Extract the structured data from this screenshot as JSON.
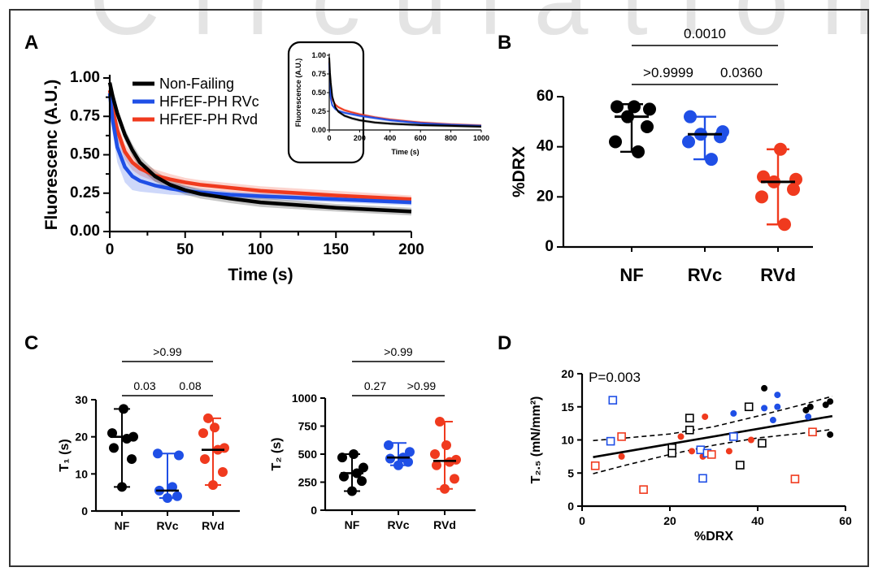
{
  "watermark": "Circulation",
  "colors": {
    "NF": "#000000",
    "RVc": "#1f4fe6",
    "RVd": "#f03a1e"
  },
  "chart_data": [
    {
      "panel": "A",
      "type": "line",
      "xlabel": "Time (s)",
      "ylabel": "Fluorescenc (A.U.)",
      "xlim": [
        0,
        200
      ],
      "ylim": [
        0,
        1.0
      ],
      "xticks": [
        "0",
        "50",
        "100",
        "150",
        "200"
      ],
      "yticks": [
        "0.00",
        "0.25",
        "0.50",
        "0.75",
        "1.00"
      ],
      "legend_position": "top-left",
      "series": [
        {
          "name": "Non-Failing",
          "color": "#000000",
          "x": [
            0,
            2,
            5,
            10,
            15,
            20,
            30,
            40,
            50,
            60,
            80,
            100,
            150,
            200
          ],
          "y": [
            0.97,
            0.88,
            0.77,
            0.63,
            0.53,
            0.45,
            0.36,
            0.305,
            0.27,
            0.245,
            0.215,
            0.19,
            0.155,
            0.13
          ],
          "band": [
            0.03,
            0.04,
            0.04,
            0.04,
            0.04,
            0.04,
            0.035,
            0.03,
            0.03,
            0.03,
            0.03,
            0.03,
            0.025,
            0.025
          ]
        },
        {
          "name": "HFrEF-PH RVc",
          "color": "#1f4fe6",
          "x": [
            0,
            2,
            5,
            10,
            15,
            20,
            30,
            40,
            50,
            60,
            80,
            100,
            150,
            200
          ],
          "y": [
            0.9,
            0.72,
            0.55,
            0.42,
            0.36,
            0.33,
            0.3,
            0.28,
            0.265,
            0.255,
            0.24,
            0.23,
            0.21,
            0.19
          ],
          "band": [
            0.05,
            0.08,
            0.1,
            0.1,
            0.09,
            0.07,
            0.05,
            0.04,
            0.03,
            0.025,
            0.02,
            0.02,
            0.02,
            0.02
          ]
        },
        {
          "name": "HFrEF-PH Rvd",
          "color": "#f03a1e",
          "x": [
            0,
            2,
            5,
            10,
            15,
            20,
            30,
            40,
            50,
            60,
            80,
            100,
            150,
            200
          ],
          "y": [
            0.92,
            0.8,
            0.66,
            0.52,
            0.45,
            0.41,
            0.365,
            0.34,
            0.32,
            0.305,
            0.285,
            0.265,
            0.235,
            0.21
          ],
          "band": [
            0.05,
            0.06,
            0.06,
            0.05,
            0.05,
            0.045,
            0.04,
            0.035,
            0.03,
            0.03,
            0.03,
            0.03,
            0.03,
            0.025
          ]
        }
      ],
      "inset": {
        "xlabel": "Time (s)",
        "ylabel": "Fluorescence (A.U.)",
        "xlim": [
          0,
          1000
        ],
        "ylim": [
          0,
          1.0
        ],
        "xticks": [
          "0",
          "200",
          "400",
          "600",
          "800",
          "1000"
        ],
        "yticks": [
          "0.00",
          "0.25",
          "0.50",
          "0.75",
          "1.00"
        ],
        "series_x": [
          0,
          5,
          10,
          20,
          40,
          60,
          100,
          150,
          200,
          300,
          400,
          600,
          800,
          1000
        ],
        "series": [
          {
            "name": "Non-Failing",
            "y": [
              0.97,
              0.77,
              0.63,
              0.45,
              0.305,
              0.245,
              0.19,
              0.155,
              0.13,
              0.1,
              0.085,
              0.065,
              0.055,
              0.045
            ]
          },
          {
            "name": "HFrEF-PH RVc",
            "y": [
              0.9,
              0.55,
              0.42,
              0.33,
              0.28,
              0.255,
              0.23,
              0.21,
              0.19,
              0.16,
              0.13,
              0.09,
              0.07,
              0.055
            ]
          },
          {
            "name": "HFrEF-PH Rvd",
            "y": [
              0.92,
              0.66,
              0.52,
              0.41,
              0.34,
              0.305,
              0.265,
              0.235,
              0.21,
              0.17,
              0.14,
              0.1,
              0.075,
              0.06
            ]
          }
        ]
      }
    },
    {
      "panel": "B",
      "type": "scatter",
      "ylabel": "%DRX",
      "ylim": [
        0,
        60
      ],
      "yticks": [
        "0",
        "20",
        "40",
        "60"
      ],
      "categories": [
        "NF",
        "RVc",
        "RVd"
      ],
      "groups": [
        {
          "name": "NF",
          "median": 52,
          "min": 38,
          "max": 57,
          "points": [
            38,
            42,
            48,
            52,
            55,
            56,
            56
          ]
        },
        {
          "name": "RVc",
          "median": 45,
          "min": 35,
          "max": 52,
          "points": [
            35,
            42,
            44,
            45,
            46,
            52
          ]
        },
        {
          "name": "RVd",
          "median": 26,
          "min": 9,
          "max": 39,
          "points": [
            9,
            20,
            23,
            26,
            27,
            28,
            39
          ]
        }
      ],
      "comparisons": [
        {
          "from": 0,
          "to": 2,
          "label": "0.0010"
        },
        {
          "from": 0,
          "to": 1,
          "label": ">0.9999"
        },
        {
          "from": 1,
          "to": 2,
          "label": "0.0360"
        }
      ]
    },
    {
      "panel": "C",
      "type": "scatter",
      "ylabel": "T₁ (s)",
      "ylim": [
        0,
        30
      ],
      "yticks": [
        "0",
        "10",
        "20",
        "30"
      ],
      "categories": [
        "NF",
        "RVc",
        "RVd"
      ],
      "groups": [
        {
          "name": "NF",
          "median": 20,
          "min": 6.5,
          "max": 27.5,
          "points": [
            6.5,
            14,
            17,
            19.5,
            20,
            21,
            27.5
          ]
        },
        {
          "name": "RVc",
          "median": 5.5,
          "min": 3.5,
          "max": 15.5,
          "points": [
            3.5,
            4,
            5.5,
            6.5,
            15,
            15.5
          ]
        },
        {
          "name": "RVd",
          "median": 16.5,
          "min": 7,
          "max": 25,
          "points": [
            7,
            10.5,
            14,
            16.5,
            17,
            21,
            22.5,
            25
          ]
        }
      ],
      "comparisons": [
        {
          "from": 0,
          "to": 2,
          "label": ">0.99"
        },
        {
          "from": 0,
          "to": 1,
          "label": "0.03"
        },
        {
          "from": 1,
          "to": 2,
          "label": "0.08"
        }
      ]
    },
    {
      "panel": "C2",
      "type": "scatter",
      "ylabel": "T₂ (s)",
      "ylim": [
        0,
        1000
      ],
      "yticks": [
        "0",
        "250",
        "500",
        "750",
        "1000"
      ],
      "categories": [
        "NF",
        "RVc",
        "RVd"
      ],
      "groups": [
        {
          "name": "NF",
          "median": 330,
          "min": 170,
          "max": 500,
          "points": [
            170,
            260,
            300,
            330,
            380,
            470,
            500
          ]
        },
        {
          "name": "RVc",
          "median": 470,
          "min": 400,
          "max": 600,
          "points": [
            400,
            430,
            460,
            470,
            520,
            580
          ]
        },
        {
          "name": "RVd",
          "median": 440,
          "min": 190,
          "max": 790,
          "points": [
            190,
            280,
            400,
            430,
            450,
            500,
            580,
            790
          ]
        }
      ],
      "comparisons": [
        {
          "from": 0,
          "to": 2,
          "label": ">0.99"
        },
        {
          "from": 0,
          "to": 1,
          "label": "0.27"
        },
        {
          "from": 1,
          "to": 2,
          "label": ">0.99"
        }
      ]
    },
    {
      "panel": "D",
      "type": "scatter",
      "xlabel": "%DRX",
      "ylabel": "T₂.₅ (mN/mm²)",
      "xlim": [
        0,
        60
      ],
      "ylim": [
        0,
        20
      ],
      "xticks": [
        "0",
        "20",
        "40",
        "60"
      ],
      "yticks": [
        "0",
        "5",
        "10",
        "15",
        "20"
      ],
      "annotation": "P=0.003",
      "fit": {
        "x": [
          2.5,
          57
        ],
        "y": [
          7.4,
          13.6
        ]
      },
      "ci_upper": {
        "x": [
          2.5,
          10,
          20,
          30,
          40,
          50,
          57
        ],
        "y": [
          9.9,
          10.3,
          10.9,
          12.0,
          13.6,
          15.3,
          16.6
        ]
      },
      "ci_lower": {
        "x": [
          2.5,
          10,
          20,
          30,
          40,
          50,
          57
        ],
        "y": [
          4.9,
          6.2,
          7.8,
          9.2,
          10.3,
          11.0,
          11.6
        ]
      },
      "points": [
        {
          "x": 56.5,
          "y": 15.8,
          "g": "NF",
          "filled": true
        },
        {
          "x": 55.5,
          "y": 15.3,
          "g": "NF",
          "filled": true
        },
        {
          "x": 52,
          "y": 15,
          "g": "NF",
          "filled": true
        },
        {
          "x": 51,
          "y": 14.5,
          "g": "NF",
          "filled": true
        },
        {
          "x": 56.5,
          "y": 10.8,
          "g": "NF",
          "filled": true
        },
        {
          "x": 41.5,
          "y": 17.8,
          "g": "NF",
          "filled": true
        },
        {
          "x": 38,
          "y": 15,
          "g": "NF",
          "filled": true
        },
        {
          "x": 44.5,
          "y": 16.8,
          "g": "RVc",
          "filled": true
        },
        {
          "x": 44.5,
          "y": 15,
          "g": "RVc",
          "filled": true
        },
        {
          "x": 41.5,
          "y": 14.8,
          "g": "RVc",
          "filled": true
        },
        {
          "x": 43.5,
          "y": 13,
          "g": "RVc",
          "filled": true
        },
        {
          "x": 34.5,
          "y": 14,
          "g": "RVc",
          "filled": true
        },
        {
          "x": 51.5,
          "y": 13.5,
          "g": "RVc",
          "filled": true
        },
        {
          "x": 28,
          "y": 13.5,
          "g": "RVd",
          "filled": true
        },
        {
          "x": 22.5,
          "y": 10.5,
          "g": "RVd",
          "filled": true
        },
        {
          "x": 25,
          "y": 8.3,
          "g": "RVd",
          "filled": true
        },
        {
          "x": 27.5,
          "y": 7.5,
          "g": "RVd",
          "filled": true
        },
        {
          "x": 33.5,
          "y": 8.3,
          "g": "RVd",
          "filled": true
        },
        {
          "x": 38.5,
          "y": 10,
          "g": "RVd",
          "filled": true
        },
        {
          "x": 9,
          "y": 7.5,
          "g": "RVd",
          "filled": true
        },
        {
          "x": 38,
          "y": 15,
          "g": "NF",
          "filled": false
        },
        {
          "x": 24.5,
          "y": 13.3,
          "g": "NF",
          "filled": false
        },
        {
          "x": 24.5,
          "y": 11.5,
          "g": "NF",
          "filled": false
        },
        {
          "x": 20.5,
          "y": 8.8,
          "g": "NF",
          "filled": false
        },
        {
          "x": 20.5,
          "y": 8,
          "g": "NF",
          "filled": false
        },
        {
          "x": 36,
          "y": 6.2,
          "g": "NF",
          "filled": false
        },
        {
          "x": 41,
          "y": 9.5,
          "g": "NF",
          "filled": false
        },
        {
          "x": 7,
          "y": 16,
          "g": "RVc",
          "filled": false
        },
        {
          "x": 6.5,
          "y": 9.8,
          "g": "RVc",
          "filled": false
        },
        {
          "x": 27,
          "y": 8.5,
          "g": "RVc",
          "filled": false
        },
        {
          "x": 28.5,
          "y": 8,
          "g": "RVc",
          "filled": false
        },
        {
          "x": 27.5,
          "y": 4.2,
          "g": "RVc",
          "filled": false
        },
        {
          "x": 34.5,
          "y": 10.5,
          "g": "RVc",
          "filled": false
        },
        {
          "x": 9,
          "y": 10.5,
          "g": "RVd",
          "filled": false
        },
        {
          "x": 3,
          "y": 6.1,
          "g": "RVd",
          "filled": false
        },
        {
          "x": 14,
          "y": 2.5,
          "g": "RVd",
          "filled": false
        },
        {
          "x": 29.5,
          "y": 7.8,
          "g": "RVd",
          "filled": false
        },
        {
          "x": 48.5,
          "y": 4.1,
          "g": "RVd",
          "filled": false
        },
        {
          "x": 52.5,
          "y": 11.2,
          "g": "RVd",
          "filled": false
        }
      ]
    }
  ]
}
